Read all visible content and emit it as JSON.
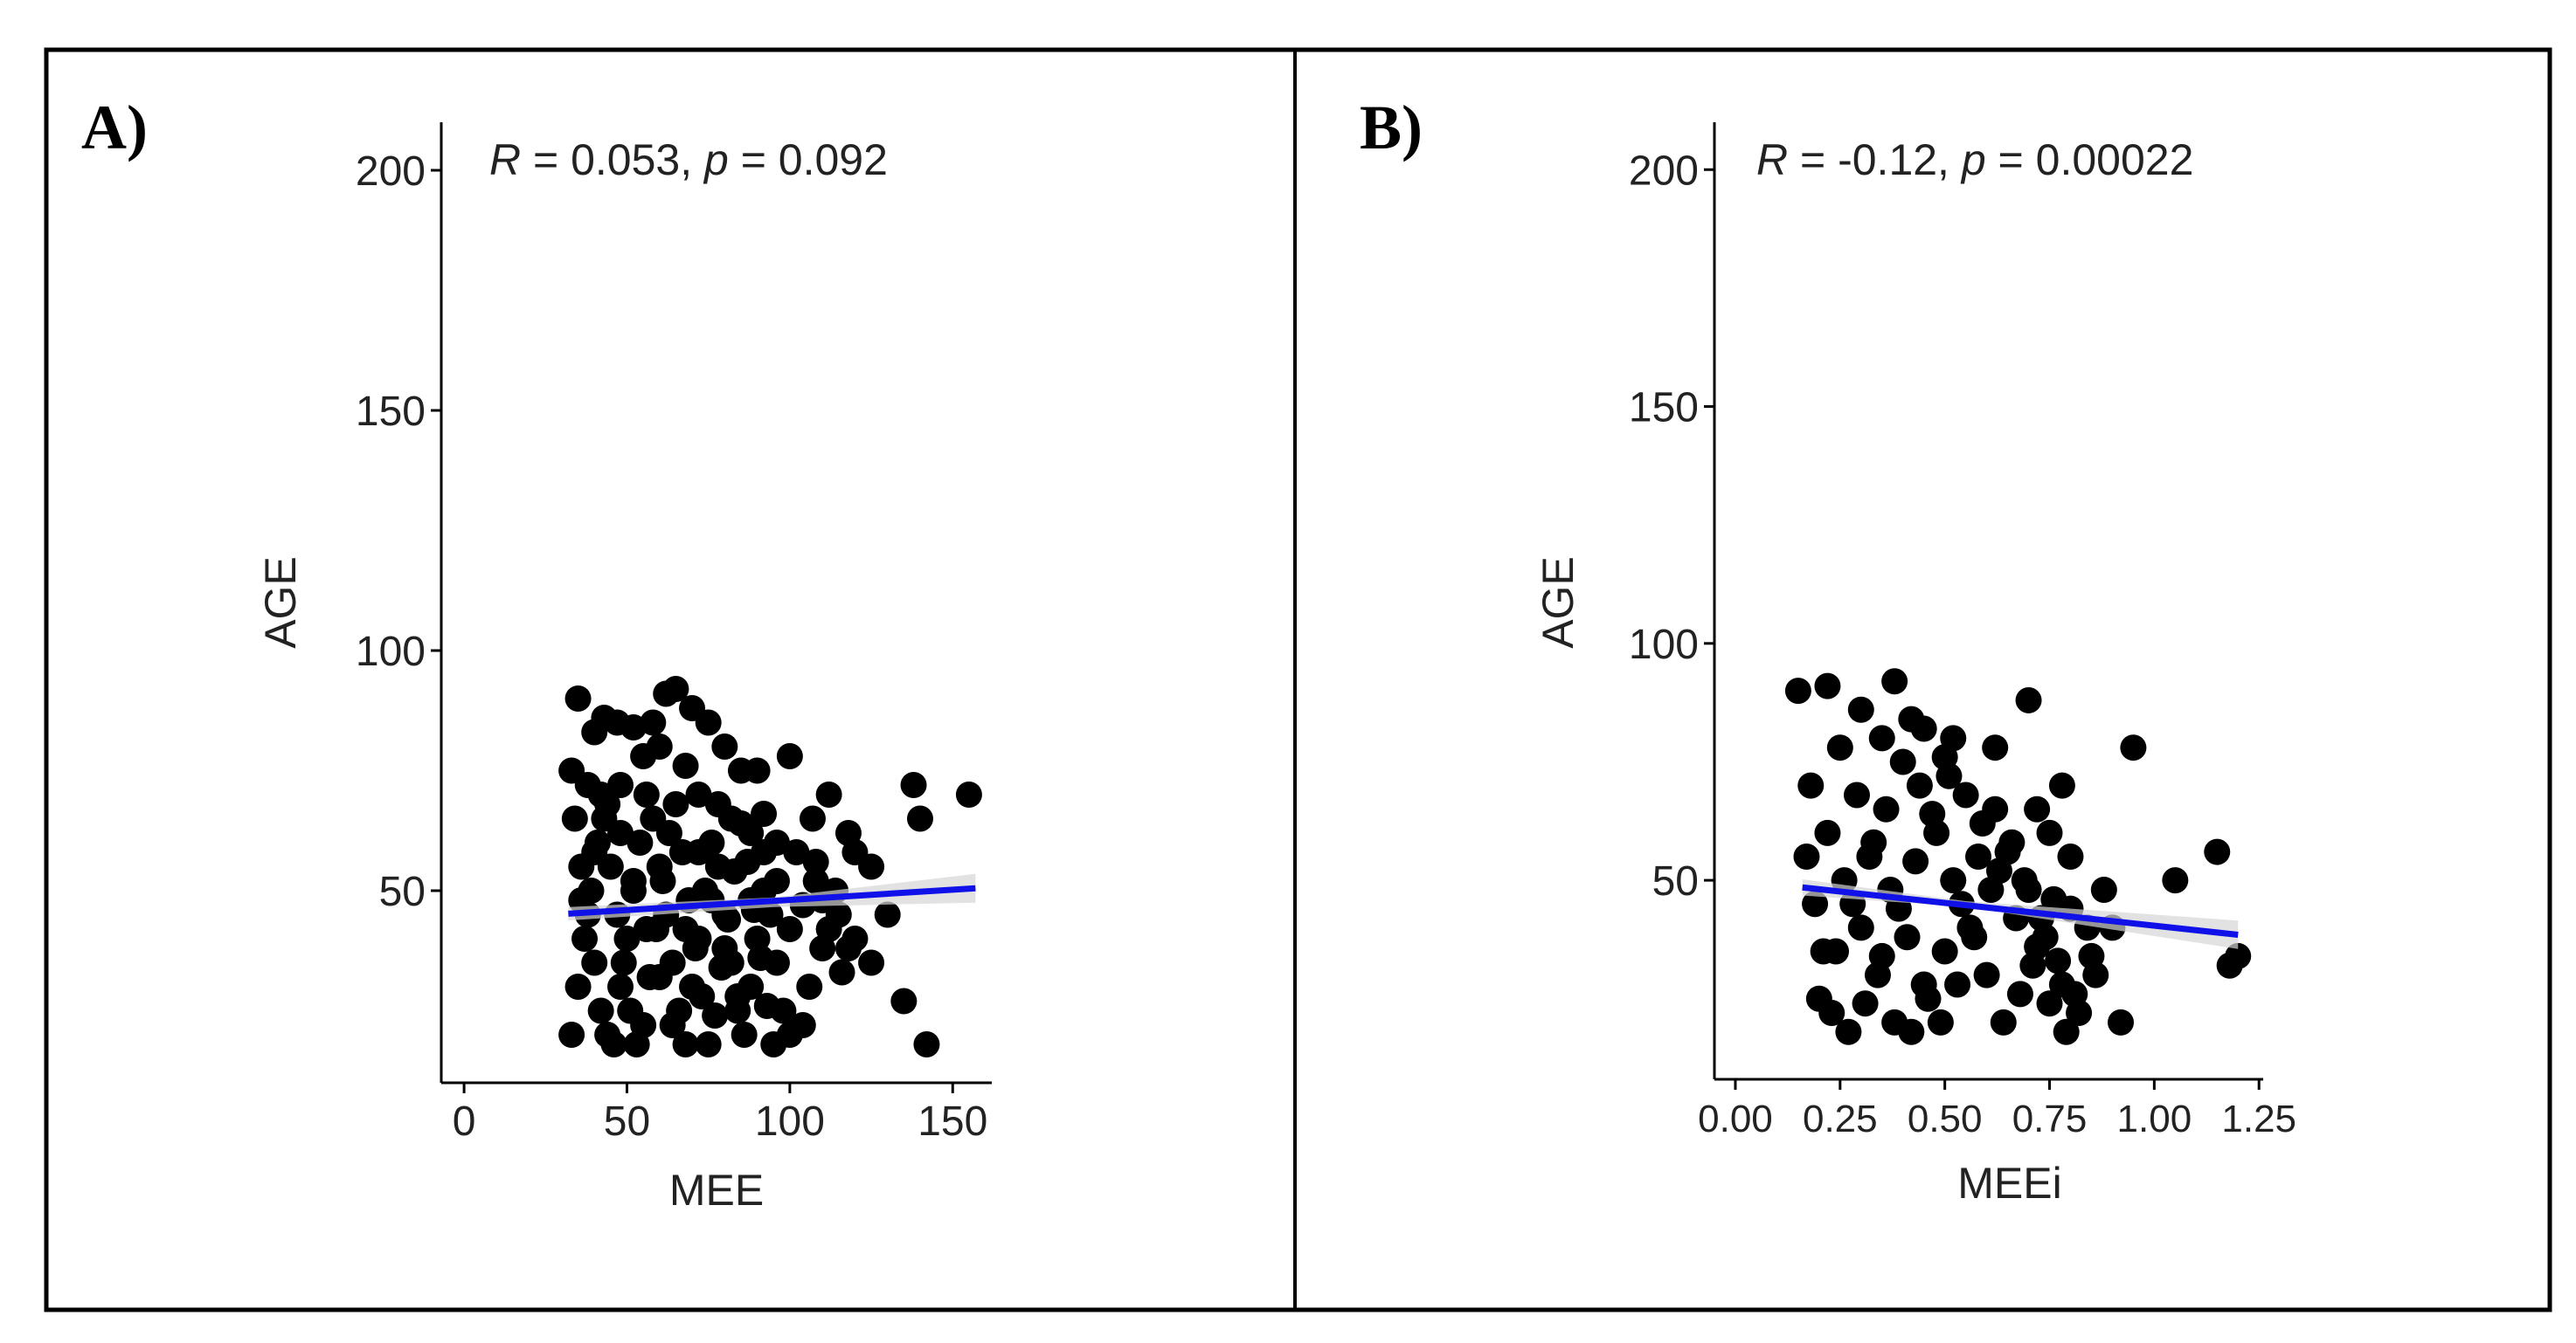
{
  "colors": {
    "points": "#000000",
    "fit_line": "#1010e8",
    "confidence_band": "#d6d6d6",
    "frame": "#000000",
    "text": "#222222"
  },
  "chart_data": [
    {
      "type": "scatter",
      "panel_label": "A)",
      "annotation": {
        "r_label": "R",
        "r_text": " = 0.053, ",
        "p_label": "p",
        "p_text": " = 0.092"
      },
      "xlabel": "MEE",
      "ylabel": "AGE",
      "xlim": [
        -7,
        162
      ],
      "ylim": [
        10,
        210
      ],
      "xticks": [
        0,
        50,
        100,
        150
      ],
      "xtick_labels": [
        "0",
        "50",
        "100",
        "150"
      ],
      "yticks": [
        50,
        100,
        150,
        200
      ],
      "ytick_labels": [
        "50",
        "100",
        "150",
        "200"
      ],
      "grid": false,
      "regression": {
        "x": [
          32,
          157
        ],
        "y": [
          45.2,
          50.5
        ],
        "ci": [
          [
            32,
            43.8,
            46.6
          ],
          [
            95,
            46.6,
            48.6
          ],
          [
            157,
            47.5,
            53.5
          ]
        ]
      },
      "points": [
        [
          35,
          90
        ],
        [
          40,
          83
        ],
        [
          43,
          86
        ],
        [
          47,
          85
        ],
        [
          52,
          84
        ],
        [
          58,
          85
        ],
        [
          62,
          91
        ],
        [
          65,
          92
        ],
        [
          70,
          88
        ],
        [
          75,
          85
        ],
        [
          80,
          80
        ],
        [
          85,
          75
        ],
        [
          90,
          75
        ],
        [
          100,
          78
        ],
        [
          107,
          65
        ],
        [
          112,
          70
        ],
        [
          118,
          62
        ],
        [
          120,
          58
        ],
        [
          125,
          55
        ],
        [
          130,
          45
        ],
        [
          138,
          72
        ],
        [
          140,
          65
        ],
        [
          155,
          70
        ],
        [
          33,
          75
        ],
        [
          38,
          72
        ],
        [
          42,
          70
        ],
        [
          48,
          72
        ],
        [
          55,
          78
        ],
        [
          60,
          80
        ],
        [
          68,
          76
        ],
        [
          72,
          70
        ],
        [
          78,
          68
        ],
        [
          82,
          65
        ],
        [
          88,
          62
        ],
        [
          92,
          66
        ],
        [
          96,
          60
        ],
        [
          102,
          58
        ],
        [
          108,
          52
        ],
        [
          110,
          48
        ],
        [
          115,
          45
        ],
        [
          120,
          40
        ],
        [
          125,
          35
        ],
        [
          135,
          27
        ],
        [
          142,
          18
        ],
        [
          34,
          65
        ],
        [
          36,
          55
        ],
        [
          38,
          45
        ],
        [
          40,
          35
        ],
        [
          42,
          25
        ],
        [
          44,
          20
        ],
        [
          46,
          18
        ],
        [
          48,
          30
        ],
        [
          50,
          40
        ],
        [
          52,
          50
        ],
        [
          54,
          60
        ],
        [
          56,
          70
        ],
        [
          58,
          65
        ],
        [
          60,
          55
        ],
        [
          62,
          45
        ],
        [
          64,
          35
        ],
        [
          66,
          25
        ],
        [
          68,
          18
        ],
        [
          70,
          30
        ],
        [
          72,
          40
        ],
        [
          74,
          50
        ],
        [
          76,
          60
        ],
        [
          78,
          55
        ],
        [
          80,
          45
        ],
        [
          82,
          35
        ],
        [
          84,
          25
        ],
        [
          86,
          20
        ],
        [
          88,
          30
        ],
        [
          90,
          40
        ],
        [
          92,
          50
        ],
        [
          94,
          45
        ],
        [
          96,
          35
        ],
        [
          98,
          25
        ],
        [
          100,
          20
        ],
        [
          104,
          22
        ],
        [
          106,
          30
        ],
        [
          110,
          38
        ],
        [
          112,
          42
        ],
        [
          116,
          33
        ],
        [
          118,
          38
        ],
        [
          33,
          20
        ],
        [
          35,
          30
        ],
        [
          37,
          40
        ],
        [
          39,
          50
        ],
        [
          41,
          60
        ],
        [
          43,
          65
        ],
        [
          45,
          55
        ],
        [
          47,
          45
        ],
        [
          49,
          35
        ],
        [
          51,
          25
        ],
        [
          53,
          18
        ],
        [
          55,
          22
        ],
        [
          57,
          32
        ],
        [
          59,
          42
        ],
        [
          61,
          52
        ],
        [
          63,
          62
        ],
        [
          65,
          68
        ],
        [
          67,
          58
        ],
        [
          69,
          48
        ],
        [
          71,
          38
        ],
        [
          73,
          28
        ],
        [
          75,
          18
        ],
        [
          77,
          24
        ],
        [
          79,
          34
        ],
        [
          81,
          44
        ],
        [
          83,
          54
        ],
        [
          85,
          64
        ],
        [
          87,
          56
        ],
        [
          89,
          46
        ],
        [
          91,
          36
        ],
        [
          93,
          26
        ],
        [
          95,
          18
        ],
        [
          36,
          48
        ],
        [
          40,
          58
        ],
        [
          44,
          68
        ],
        [
          48,
          62
        ],
        [
          52,
          52
        ],
        [
          56,
          42
        ],
        [
          60,
          32
        ],
        [
          64,
          22
        ],
        [
          68,
          42
        ],
        [
          72,
          58
        ],
        [
          76,
          48
        ],
        [
          80,
          38
        ],
        [
          84,
          28
        ],
        [
          88,
          48
        ],
        [
          92,
          58
        ],
        [
          96,
          52
        ],
        [
          100,
          42
        ],
        [
          104,
          47
        ],
        [
          108,
          56
        ],
        [
          114,
          50
        ]
      ]
    },
    {
      "type": "scatter",
      "panel_label": "B)",
      "annotation": {
        "r_label": "R",
        "r_text": " = -0.12, ",
        "p_label": "p",
        "p_text": " = 0.00022"
      },
      "xlabel": "MEEi",
      "ylabel": "AGE",
      "xlim": [
        -0.05,
        1.26
      ],
      "ylim": [
        8,
        210
      ],
      "xticks": [
        0.0,
        0.25,
        0.5,
        0.75,
        1.0,
        1.25
      ],
      "xtick_labels": [
        "0.00",
        "0.25",
        "0.50",
        "0.75",
        "1.00",
        "1.25"
      ],
      "yticks": [
        50,
        100,
        150,
        200
      ],
      "ytick_labels": [
        "50",
        "100",
        "150",
        "200"
      ],
      "grid": false,
      "regression": {
        "x": [
          0.16,
          1.2
        ],
        "y": [
          48.5,
          38.5
        ],
        "ci": [
          [
            0.16,
            46.8,
            50.2
          ],
          [
            0.55,
            44.4,
            45.6
          ],
          [
            1.2,
            35.5,
            41.5
          ]
        ]
      },
      "points": [
        [
          0.15,
          90
        ],
        [
          0.22,
          91
        ],
        [
          0.3,
          86
        ],
        [
          0.38,
          92
        ],
        [
          0.45,
          82
        ],
        [
          0.52,
          80
        ],
        [
          0.62,
          78
        ],
        [
          0.7,
          88
        ],
        [
          0.78,
          70
        ],
        [
          0.95,
          78
        ],
        [
          1.05,
          50
        ],
        [
          1.15,
          56
        ],
        [
          1.18,
          32
        ],
        [
          1.2,
          34
        ],
        [
          0.92,
          20
        ],
        [
          0.85,
          34
        ],
        [
          0.88,
          48
        ],
        [
          0.8,
          55
        ],
        [
          0.75,
          60
        ],
        [
          0.72,
          65
        ],
        [
          0.18,
          70
        ],
        [
          0.22,
          60
        ],
        [
          0.26,
          50
        ],
        [
          0.3,
          40
        ],
        [
          0.34,
          30
        ],
        [
          0.38,
          20
        ],
        [
          0.42,
          18
        ],
        [
          0.46,
          25
        ],
        [
          0.5,
          35
        ],
        [
          0.54,
          45
        ],
        [
          0.58,
          55
        ],
        [
          0.62,
          65
        ],
        [
          0.66,
          58
        ],
        [
          0.7,
          48
        ],
        [
          0.74,
          38
        ],
        [
          0.78,
          28
        ],
        [
          0.82,
          22
        ],
        [
          0.86,
          30
        ],
        [
          0.9,
          40
        ],
        [
          0.2,
          25
        ],
        [
          0.24,
          35
        ],
        [
          0.28,
          45
        ],
        [
          0.32,
          55
        ],
        [
          0.36,
          65
        ],
        [
          0.4,
          75
        ],
        [
          0.44,
          70
        ],
        [
          0.48,
          60
        ],
        [
          0.52,
          50
        ],
        [
          0.56,
          40
        ],
        [
          0.6,
          30
        ],
        [
          0.64,
          20
        ],
        [
          0.68,
          26
        ],
        [
          0.72,
          36
        ],
        [
          0.76,
          46
        ],
        [
          0.8,
          44
        ],
        [
          0.84,
          40
        ],
        [
          0.17,
          55
        ],
        [
          0.19,
          45
        ],
        [
          0.21,
          35
        ],
        [
          0.23,
          22
        ],
        [
          0.27,
          18
        ],
        [
          0.31,
          24
        ],
        [
          0.35,
          34
        ],
        [
          0.39,
          44
        ],
        [
          0.43,
          54
        ],
        [
          0.47,
          64
        ],
        [
          0.51,
          72
        ],
        [
          0.55,
          68
        ],
        [
          0.59,
          62
        ],
        [
          0.63,
          52
        ],
        [
          0.67,
          42
        ],
        [
          0.71,
          32
        ],
        [
          0.75,
          24
        ],
        [
          0.79,
          18
        ],
        [
          0.25,
          78
        ],
        [
          0.29,
          68
        ],
        [
          0.33,
          58
        ],
        [
          0.37,
          48
        ],
        [
          0.41,
          38
        ],
        [
          0.45,
          28
        ],
        [
          0.49,
          20
        ],
        [
          0.53,
          28
        ],
        [
          0.57,
          38
        ],
        [
          0.61,
          48
        ],
        [
          0.65,
          56
        ],
        [
          0.69,
          50
        ],
        [
          0.73,
          42
        ],
        [
          0.77,
          33
        ],
        [
          0.81,
          26
        ],
        [
          0.35,
          80
        ],
        [
          0.42,
          84
        ],
        [
          0.5,
          76
        ]
      ]
    }
  ]
}
